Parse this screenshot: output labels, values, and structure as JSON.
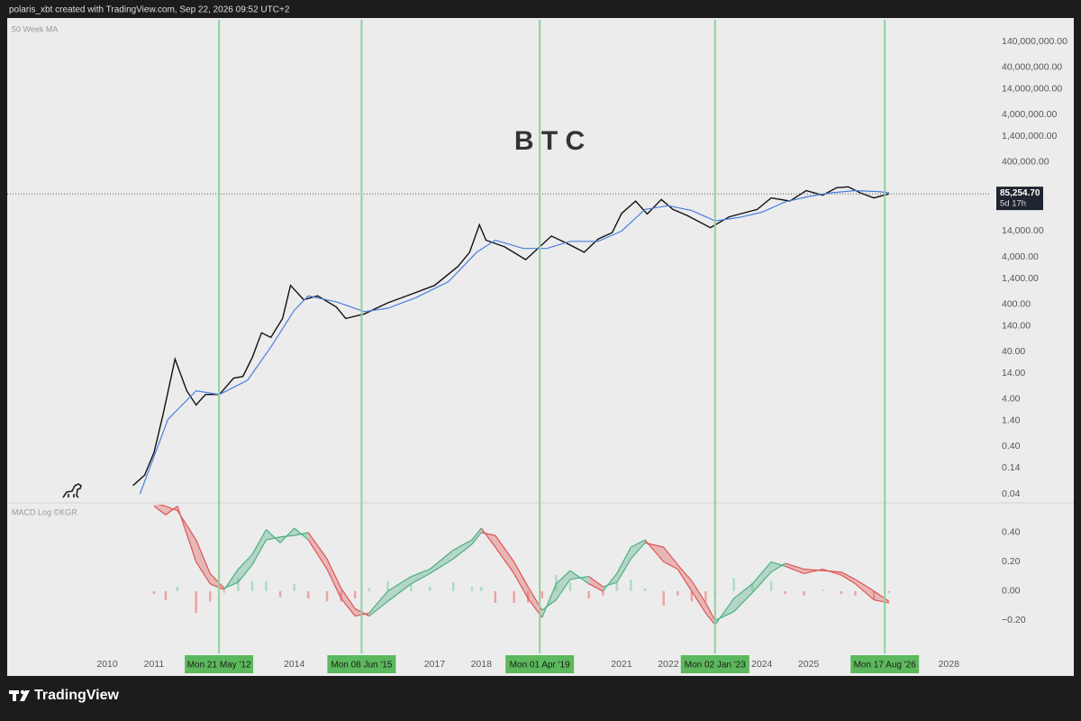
{
  "header": {
    "text": "polaris_xbt created with TradingView.com, Sep 22, 2026 09:52 UTC+2"
  },
  "footer": {
    "brand": "TradingView"
  },
  "chart_data": [
    {
      "type": "line",
      "title": "B T C",
      "indicator_label": "50 Week MA",
      "log_scale": true,
      "grid": false,
      "xlim": [
        2007.86,
        2028.9
      ],
      "ylim": [
        0.027,
        400000000
      ],
      "yticks": [
        {
          "value": 140000000,
          "label": "140,000,000.00"
        },
        {
          "value": 40000000,
          "label": "40,000,000.00"
        },
        {
          "value": 14000000,
          "label": "14,000,000.00"
        },
        {
          "value": 4000000,
          "label": "4,000,000.00"
        },
        {
          "value": 1400000,
          "label": "1,400,000.00"
        },
        {
          "value": 400000,
          "label": "400,000.00"
        },
        {
          "value": 14000,
          "label": "14,000.00"
        },
        {
          "value": 4000,
          "label": "4,000.00"
        },
        {
          "value": 1400,
          "label": "1,400.00"
        },
        {
          "value": 400,
          "label": "400.00"
        },
        {
          "value": 140,
          "label": "140.00"
        },
        {
          "value": 40,
          "label": "40.00"
        },
        {
          "value": 14,
          "label": "14.00"
        },
        {
          "value": 4,
          "label": "4.00"
        },
        {
          "value": 1.4,
          "label": "1.40"
        },
        {
          "value": 0.4,
          "label": "0.40"
        },
        0.14,
        0.04
      ],
      "series": [
        {
          "color": "#111111",
          "x": [
            2010.55,
            2010.8,
            2011.0,
            2011.2,
            2011.45,
            2011.7,
            2011.9,
            2012.1,
            2012.4,
            2012.7,
            2012.9,
            2013.1,
            2013.3,
            2013.5,
            2013.75,
            2013.92,
            2014.2,
            2014.5,
            2014.9,
            2015.1,
            2015.5,
            2016.0,
            2016.5,
            2017.0,
            2017.5,
            2017.75,
            2017.96,
            2018.1,
            2018.5,
            2018.95,
            2019.5,
            2019.8,
            2020.2,
            2020.5,
            2020.8,
            2021.0,
            2021.3,
            2021.55,
            2021.85,
            2022.1,
            2022.4,
            2022.9,
            2023.3,
            2023.9,
            2024.2,
            2024.6,
            2024.95,
            2025.3,
            2025.6,
            2025.85,
            2026.1,
            2026.4,
            2026.72
          ],
          "values": [
            0.06,
            0.1,
            0.3,
            2,
            28,
            6,
            3,
            5,
            5,
            11,
            12,
            30,
            100,
            80,
            200,
            1000,
            500,
            600,
            350,
            200,
            250,
            430,
            650,
            1000,
            2500,
            5000,
            19000,
            9000,
            6500,
            3500,
            11000,
            8000,
            5000,
            9500,
            13000,
            33000,
            60000,
            32000,
            65000,
            40000,
            30000,
            16500,
            28000,
            40000,
            70000,
            60000,
            100000,
            80000,
            115000,
            120000,
            90000,
            70000,
            85254.7
          ]
        },
        {
          "color": "#4a7fe0",
          "x": [
            2010.7,
            2011.3,
            2011.9,
            2012.4,
            2013.0,
            2013.5,
            2014.0,
            2014.3,
            2014.9,
            2015.5,
            2016.0,
            2016.6,
            2017.3,
            2017.9,
            2018.3,
            2018.9,
            2019.4,
            2019.9,
            2020.5,
            2021.0,
            2021.5,
            2022.0,
            2022.5,
            2023.0,
            2023.5,
            2024.0,
            2024.5,
            2025.0,
            2025.5,
            2026.0,
            2026.5,
            2026.72
          ],
          "values": [
            0.04,
            1.5,
            6,
            5,
            10,
            50,
            300,
            600,
            450,
            280,
            330,
            550,
            1200,
            5000,
            9000,
            6000,
            6000,
            8500,
            8500,
            14000,
            40000,
            48000,
            38000,
            23000,
            27000,
            35000,
            58000,
            75000,
            90000,
            100000,
            95000,
            90000
          ]
        }
      ],
      "last_price": {
        "value": 85254.7,
        "label": "85,254.70",
        "countdown": "5d 17h"
      }
    },
    {
      "type": "macd",
      "title": "MACD Log ©KGR",
      "grid": false,
      "xlim": [
        2007.86,
        2028.9
      ],
      "ylim": [
        -0.425,
        0.59
      ],
      "yticks": [
        {
          "value": 0.4,
          "label": "0.40"
        },
        {
          "value": 0.2,
          "label": "0.20"
        },
        {
          "value": 0,
          "label": "0.00"
        },
        {
          "value": -0.2,
          "label": "−0.20"
        }
      ],
      "xticks": [
        2010,
        2011,
        2014,
        2017,
        2018,
        2021,
        2022,
        2024,
        2025,
        2028
      ],
      "up_color": "#4caf82",
      "down_color": "#e05555",
      "x": [
        2011.0,
        2011.25,
        2011.5,
        2011.9,
        2012.2,
        2012.5,
        2012.8,
        2013.1,
        2013.4,
        2013.7,
        2014.0,
        2014.3,
        2014.7,
        2015.0,
        2015.3,
        2015.6,
        2016.0,
        2016.5,
        2016.9,
        2017.4,
        2017.8,
        2018.0,
        2018.3,
        2018.7,
        2019.0,
        2019.3,
        2019.6,
        2019.9,
        2020.3,
        2020.6,
        2020.9,
        2021.2,
        2021.5,
        2021.9,
        2022.2,
        2022.5,
        2022.8,
        2023.0,
        2023.4,
        2023.8,
        2024.2,
        2024.5,
        2024.9,
        2025.3,
        2025.7,
        2026.0,
        2026.4,
        2026.72
      ],
      "series": [
        {
          "values": [
            0.58,
            0.52,
            0.58,
            0.2,
            0.05,
            0.01,
            0.15,
            0.25,
            0.42,
            0.33,
            0.43,
            0.35,
            0.15,
            -0.05,
            -0.17,
            -0.15,
            0.0,
            0.1,
            0.15,
            0.28,
            0.35,
            0.43,
            0.3,
            0.12,
            -0.05,
            -0.18,
            0.05,
            0.14,
            0.05,
            0.0,
            0.12,
            0.3,
            0.35,
            0.2,
            0.15,
            0.0,
            -0.15,
            -0.23,
            -0.05,
            0.05,
            0.2,
            0.17,
            0.12,
            0.15,
            0.11,
            0.05,
            -0.06,
            -0.08
          ]
        },
        {
          "values": [
            0.6,
            0.58,
            0.55,
            0.35,
            0.12,
            0.02,
            0.06,
            0.18,
            0.35,
            0.37,
            0.38,
            0.4,
            0.22,
            0.02,
            -0.12,
            -0.17,
            -0.07,
            0.05,
            0.12,
            0.22,
            0.32,
            0.4,
            0.38,
            0.2,
            0.03,
            -0.13,
            -0.06,
            0.08,
            0.1,
            0.03,
            0.06,
            0.22,
            0.33,
            0.3,
            0.18,
            0.07,
            -0.08,
            -0.2,
            -0.14,
            -0.01,
            0.13,
            0.19,
            0.15,
            0.14,
            0.13,
            0.08,
            0.0,
            -0.07
          ]
        }
      ],
      "histogram": {
        "up_color": "#a8dcc4",
        "down_color": "#f0a0a0",
        "values": [
          -0.02,
          -0.06,
          0.03,
          -0.15,
          -0.07,
          -0.01,
          0.09,
          0.07,
          0.07,
          -0.04,
          0.05,
          -0.05,
          -0.07,
          -0.07,
          -0.05,
          0.02,
          0.07,
          0.05,
          0.03,
          0.06,
          0.03,
          0.03,
          -0.08,
          -0.08,
          -0.08,
          -0.05,
          0.11,
          0.06,
          -0.05,
          -0.03,
          0.06,
          0.08,
          0.02,
          -0.1,
          -0.03,
          -0.07,
          -0.07,
          -0.03,
          0.09,
          0.06,
          0.07,
          -0.02,
          -0.03,
          0.01,
          -0.02,
          -0.03,
          -0.06,
          -0.01
        ]
      },
      "marker_color": "#8fd19e",
      "marker_label_color": "#5cb85c",
      "markers": [
        {
          "x": 2012.39,
          "label": "Mon 21 May '12"
        },
        {
          "x": 2015.44,
          "label": "Mon 08 Jun '15"
        },
        {
          "x": 2019.25,
          "label": "Mon 01 Apr '19"
        },
        {
          "x": 2023.0,
          "label": "Mon 02 Jan '23"
        },
        {
          "x": 2026.63,
          "label": "Mon 17 Aug '26"
        }
      ]
    }
  ]
}
